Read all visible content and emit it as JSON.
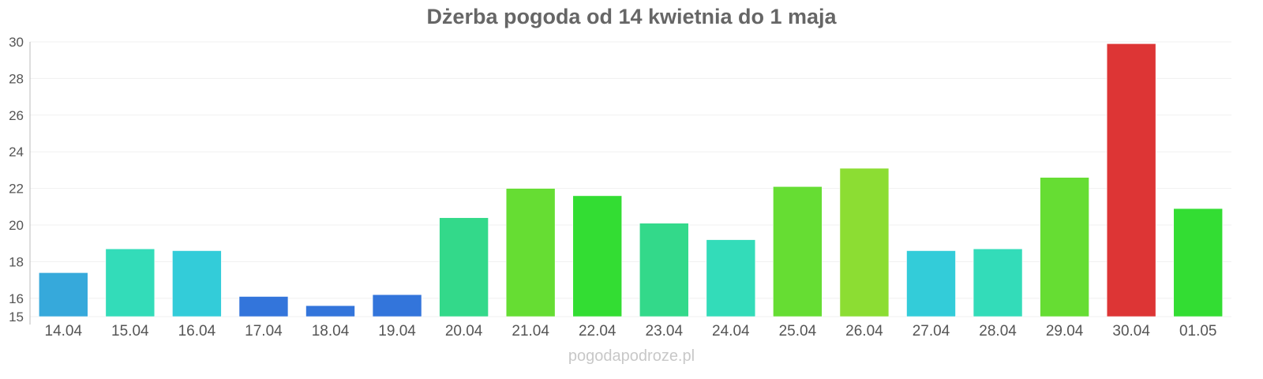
{
  "chart_data": {
    "type": "bar",
    "title": "Dżerba pogoda od 14 kwietnia do 1 maja",
    "xlabel": "",
    "ylabel": "",
    "ylim": [
      15,
      30
    ],
    "yticks": [
      15,
      16,
      18,
      20,
      22,
      24,
      26,
      28,
      30
    ],
    "grid": true,
    "categories": [
      "14.04",
      "15.04",
      "16.04",
      "17.04",
      "18.04",
      "19.04",
      "20.04",
      "21.04",
      "22.04",
      "23.04",
      "24.04",
      "25.04",
      "26.04",
      "27.04",
      "28.04",
      "29.04",
      "30.04",
      "01.05"
    ],
    "values": [
      17.4,
      18.7,
      18.6,
      16.1,
      15.6,
      16.2,
      20.4,
      22.0,
      21.6,
      20.1,
      19.2,
      22.1,
      23.1,
      18.6,
      18.7,
      22.6,
      29.9,
      20.9
    ],
    "colors": [
      "#36a9db",
      "#33dcb9",
      "#33ccd9",
      "#3375db",
      "#3375db",
      "#3375db",
      "#33d98a",
      "#66dd33",
      "#33dd33",
      "#33d98a",
      "#33dcb9",
      "#66dd33",
      "#8cdd33",
      "#33ccd9",
      "#33dcb9",
      "#66dd33",
      "#dd3535",
      "#33dd33"
    ]
  },
  "watermark": "pogodapodroze.pl"
}
